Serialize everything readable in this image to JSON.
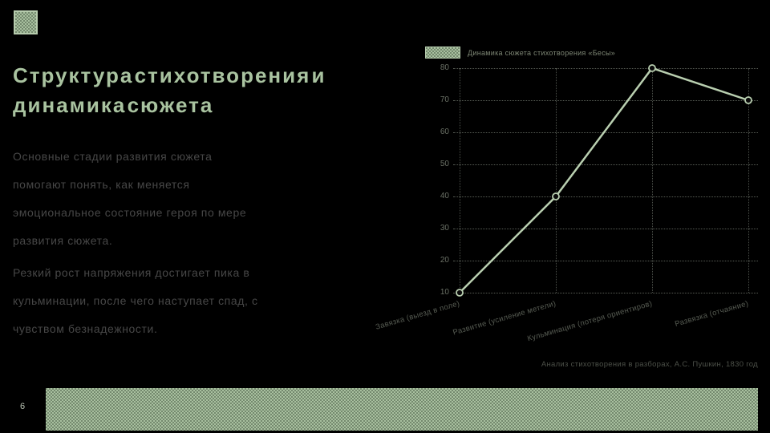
{
  "slide": {
    "page_number": "6",
    "title_line1": "Структура стихотворения и",
    "title_line2": "динамика сюжета",
    "body": {
      "p1_line1": "Основные стадии развития сюжета",
      "p1_line2": "помогают понять, как меняется",
      "p1_line3": "эмоциональное состояние героя по мере",
      "p1_line4": "развития сюжета.",
      "p2_line1": "Резкий рост напряжения достигает пика в",
      "p2_line2": "кульминации, после чего наступает спад, с",
      "p2_line3": "чувством безнадежности."
    },
    "caption": "Анализ стихотворения в разборах, А.С. Пушкин, 1830 год"
  },
  "chart_data": {
    "type": "line",
    "title": "Динамика сюжета стихотворения «Бесы»",
    "categories": [
      "Завязка (выезд в поле)",
      "Развитие (усиление метели)",
      "Кульминация (потеря ориентиров)",
      "Развязка (отчаяние)"
    ],
    "values": [
      10,
      40,
      80,
      70
    ],
    "xlabel": "",
    "ylabel": "",
    "ylim": [
      10,
      80
    ],
    "ytick_step": 10,
    "yticks": [
      80,
      70,
      60,
      50,
      40,
      30,
      20,
      10
    ],
    "grid": true,
    "legend_position": "top-left",
    "line_color": "#b9cfb0",
    "marker": "circle"
  },
  "colors": {
    "background": "#000000",
    "accent_sage": "#a9c3a0",
    "muted_text": "#474747",
    "axis_text": "#6a7065",
    "footer_band": "#9db795"
  }
}
